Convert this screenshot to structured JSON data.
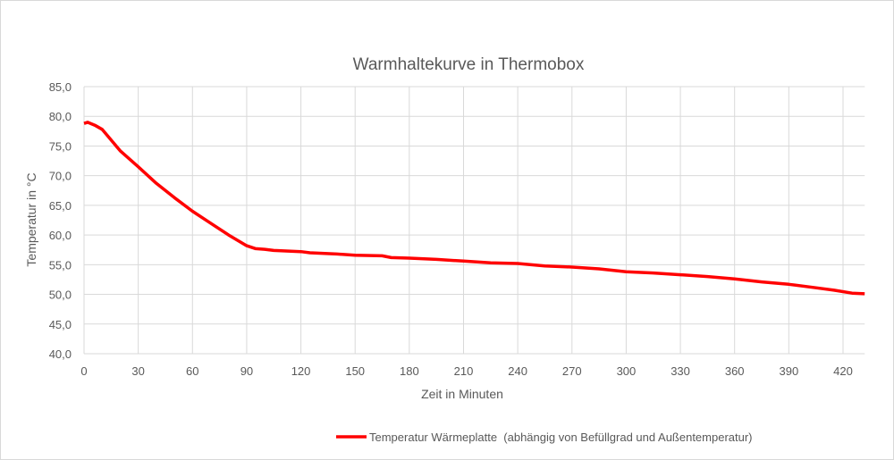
{
  "chart_data": {
    "type": "line",
    "title": "Warmhaltekurve in Thermobox",
    "xlabel": "Zeit in Minuten",
    "ylabel": "Temperatur in °C",
    "xlim": [
      0,
      432
    ],
    "ylim": [
      40,
      85
    ],
    "x_ticks": [
      0,
      30,
      60,
      90,
      120,
      150,
      180,
      210,
      240,
      270,
      300,
      330,
      360,
      390,
      420
    ],
    "y_ticks": [
      "40,0",
      "45,0",
      "50,0",
      "55,0",
      "60,0",
      "65,0",
      "70,0",
      "75,0",
      "80,0",
      "85,0"
    ],
    "grid": true,
    "legend_position": "bottom",
    "series": [
      {
        "name": "Temperatur Wärmeplatte  (abhängig von Befüllgrad und Außentemperatur)",
        "color": "#ff0000",
        "points": [
          [
            0,
            78.8
          ],
          [
            2,
            79.0
          ],
          [
            6,
            78.5
          ],
          [
            10,
            77.8
          ],
          [
            15,
            76.0
          ],
          [
            20,
            74.2
          ],
          [
            30,
            71.5
          ],
          [
            40,
            68.7
          ],
          [
            50,
            66.3
          ],
          [
            60,
            64.0
          ],
          [
            70,
            62.0
          ],
          [
            80,
            60.0
          ],
          [
            90,
            58.2
          ],
          [
            95,
            57.7
          ],
          [
            100,
            57.6
          ],
          [
            105,
            57.4
          ],
          [
            120,
            57.2
          ],
          [
            125,
            57.0
          ],
          [
            140,
            56.8
          ],
          [
            150,
            56.6
          ],
          [
            165,
            56.5
          ],
          [
            170,
            56.2
          ],
          [
            180,
            56.1
          ],
          [
            195,
            55.9
          ],
          [
            210,
            55.6
          ],
          [
            225,
            55.3
          ],
          [
            240,
            55.2
          ],
          [
            255,
            54.8
          ],
          [
            270,
            54.6
          ],
          [
            285,
            54.3
          ],
          [
            300,
            53.8
          ],
          [
            315,
            53.6
          ],
          [
            330,
            53.3
          ],
          [
            345,
            53.0
          ],
          [
            360,
            52.6
          ],
          [
            375,
            52.1
          ],
          [
            390,
            51.7
          ],
          [
            405,
            51.1
          ],
          [
            415,
            50.7
          ],
          [
            425,
            50.2
          ],
          [
            432,
            50.1
          ]
        ]
      }
    ]
  }
}
